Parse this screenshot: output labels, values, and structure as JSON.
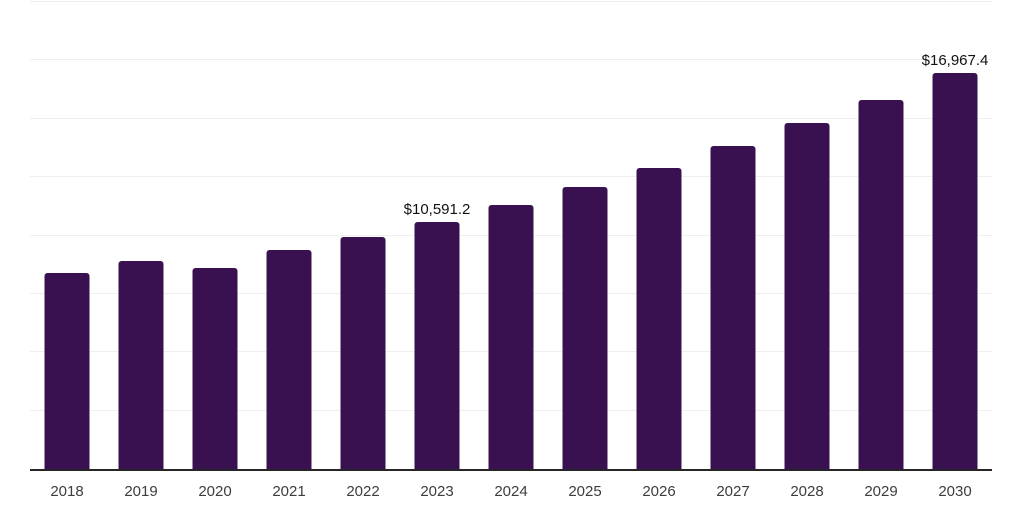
{
  "chart_data": {
    "type": "bar",
    "title": "",
    "xlabel": "",
    "ylabel": "",
    "categories": [
      "2018",
      "2019",
      "2020",
      "2021",
      "2022",
      "2023",
      "2024",
      "2025",
      "2026",
      "2027",
      "2028",
      "2029",
      "2030"
    ],
    "values": [
      8385,
      8910,
      8600,
      9380,
      9950,
      10591.2,
      11305,
      12060,
      12875,
      13830,
      14800,
      15825,
      16967.4
    ],
    "data_labels": [
      "",
      "",
      "",
      "",
      "",
      "$10,591.2",
      "",
      "",
      "",
      "",
      "",
      "",
      "$16,967.4"
    ],
    "ylim": [
      0,
      20000
    ],
    "grid_step": 2500,
    "grid": true,
    "y_tick_labels_visible": false,
    "legend_position": "none"
  },
  "colors": {
    "bar": "#3A1150",
    "grid": "#efefef",
    "axis": "#262626",
    "data_label": "#111111",
    "tick_label": "#3d3d3d",
    "background": "#ffffff"
  }
}
